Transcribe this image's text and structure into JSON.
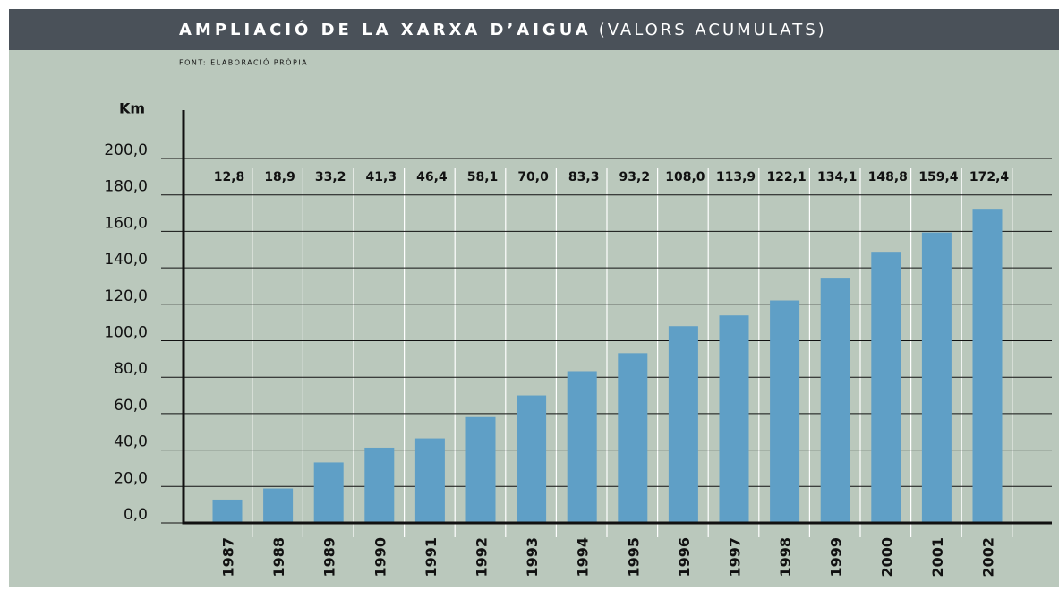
{
  "chart_data": {
    "type": "bar",
    "title": "AMPLIACIÓ DE LA XARXA D’AIGUA",
    "subtitle": "(VALORS ACUMULATS)",
    "source": "FONT: ELABORACIÓ PRÒPIA",
    "y_label": "Km",
    "categories": [
      "1987",
      "1988",
      "1989",
      "1990",
      "1991",
      "1992",
      "1993",
      "1994",
      "1995",
      "1996",
      "1997",
      "1998",
      "1999",
      "2000",
      "2001",
      "2002"
    ],
    "values": [
      12.8,
      18.9,
      33.2,
      41.3,
      46.4,
      58.1,
      70.0,
      83.3,
      93.2,
      108.0,
      113.9,
      122.1,
      134.1,
      148.8,
      159.4,
      172.4
    ],
    "value_labels": [
      "12,8",
      "18,9",
      "33,2",
      "41,3",
      "46,4",
      "58,1",
      "70,0",
      "83,3",
      "93,2",
      "108,0",
      "113,9",
      "122,1",
      "134,1",
      "148,8",
      "159,4",
      "172,4"
    ],
    "color": "#5f9fc6",
    "ylim": [
      0,
      200
    ],
    "yticks": [
      {
        "value": 0,
        "label": "0,0"
      },
      {
        "value": 20,
        "label": "20,0"
      },
      {
        "value": 40,
        "label": "40,0"
      },
      {
        "value": 60,
        "label": "60,0"
      },
      {
        "value": 80,
        "label": "80,0"
      },
      {
        "value": 100,
        "label": "100,0"
      },
      {
        "value": 120,
        "label": "120,0"
      },
      {
        "value": 140,
        "label": "140,0"
      },
      {
        "value": 160,
        "label": "160,0"
      },
      {
        "value": 180,
        "label": "180,0"
      },
      {
        "value": 200,
        "label": "200,0"
      }
    ],
    "grid": true
  }
}
